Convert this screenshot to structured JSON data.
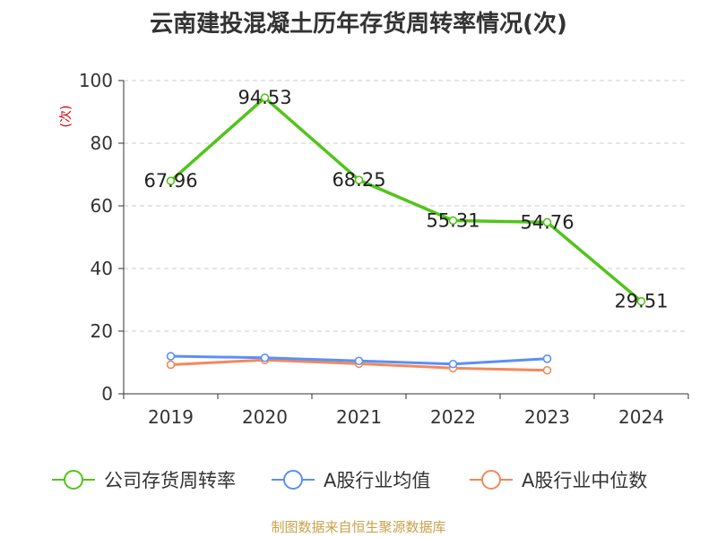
{
  "title": "云南建投混凝土历年存货周转率情况(次)",
  "footer": "制图数据来自恒生聚源数据库",
  "chart_data": {
    "type": "line",
    "title": "云南建投混凝土历年存货周转率情况(次)",
    "ylabel": "(次)",
    "xlabel": "",
    "ylim": [
      0,
      100
    ],
    "yticks": [
      "0",
      "20",
      "40",
      "60",
      "80",
      "100"
    ],
    "categories": [
      "2019",
      "2020",
      "2021",
      "2022",
      "2023",
      "2024"
    ],
    "grid": "horizontal-dashed",
    "legend_position": "bottom",
    "series": [
      {
        "name": "公司存货周转率",
        "color": "#52c41a",
        "values": [
          67.96,
          94.53,
          68.25,
          55.31,
          54.76,
          29.51
        ],
        "labels": [
          "67.96",
          "94.53",
          "68.25",
          "55.31",
          "54.76",
          "29.51"
        ]
      },
      {
        "name": "A股行业均值",
        "color": "#5b8ff9",
        "values": [
          12.0,
          11.5,
          10.5,
          9.5,
          11.2,
          null
        ]
      },
      {
        "name": "A股行业中位数",
        "color": "#f4885b",
        "values": [
          9.3,
          10.8,
          9.6,
          8.2,
          7.5,
          null
        ]
      }
    ]
  }
}
